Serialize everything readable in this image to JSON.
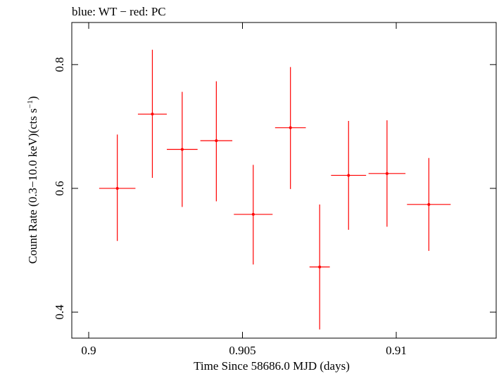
{
  "chart_data": {
    "type": "scatter",
    "title": "blue: WT − red: PC",
    "xlabel": "Time Since 58686.0 MJD (days)",
    "ylabel_main": "Count Rate (0.3−10.0 keV)(cts s",
    "ylabel_sup": "−1",
    "ylabel_close": ")",
    "xlim": [
      0.89945,
      0.91325
    ],
    "ylim": [
      0.358,
      0.868
    ],
    "xticks": [
      {
        "value": 0.9,
        "label": "0.9"
      },
      {
        "value": 0.905,
        "label": "0.905"
      },
      {
        "value": 0.91,
        "label": "0.91"
      }
    ],
    "yticks": [
      {
        "value": 0.4,
        "label": "0.4"
      },
      {
        "value": 0.6,
        "label": "0.6"
      },
      {
        "value": 0.8,
        "label": "0.8"
      }
    ],
    "grid": false,
    "series": [
      {
        "color": "#ff0000",
        "points": [
          {
            "x": 0.90093,
            "xerr": 0.00059,
            "y": 0.6,
            "yerr_low": 0.085,
            "yerr_high": 0.087
          },
          {
            "x": 0.90207,
            "xerr": 0.00047,
            "y": 0.72,
            "yerr_low": 0.103,
            "yerr_high": 0.104
          },
          {
            "x": 0.90304,
            "xerr": 0.0005,
            "y": 0.663,
            "yerr_low": 0.093,
            "yerr_high": 0.093
          },
          {
            "x": 0.90415,
            "xerr": 0.00052,
            "y": 0.677,
            "yerr_low": 0.098,
            "yerr_high": 0.096
          },
          {
            "x": 0.90535,
            "xerr": 0.00063,
            "y": 0.558,
            "yerr_low": 0.081,
            "yerr_high": 0.08
          },
          {
            "x": 0.90656,
            "xerr": 0.0005,
            "y": 0.698,
            "yerr_low": 0.099,
            "yerr_high": 0.098
          },
          {
            "x": 0.90751,
            "xerr": 0.00033,
            "y": 0.473,
            "yerr_low": 0.101,
            "yerr_high": 0.101
          },
          {
            "x": 0.90845,
            "xerr": 0.00057,
            "y": 0.621,
            "yerr_low": 0.088,
            "yerr_high": 0.088
          },
          {
            "x": 0.9097,
            "xerr": 0.0006,
            "y": 0.624,
            "yerr_low": 0.086,
            "yerr_high": 0.086
          },
          {
            "x": 0.91106,
            "xerr": 0.00071,
            "y": 0.574,
            "yerr_low": 0.075,
            "yerr_high": 0.075
          }
        ]
      }
    ]
  }
}
